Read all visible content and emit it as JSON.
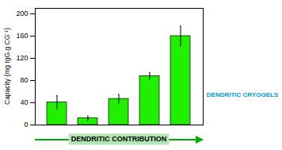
{
  "chart_data": {
    "type": "bar",
    "categories": [
      null,
      null,
      null,
      null,
      null
    ],
    "values": [
      41,
      12,
      47,
      88,
      160
    ],
    "errors": [
      12,
      4,
      8,
      6,
      18
    ],
    "color": "#22ee00",
    "ylabel": "Capacity (mg IgG.g CG⁻¹)",
    "ylim": [
      0,
      210
    ],
    "yticks": [
      0,
      40,
      80,
      120,
      160,
      200
    ],
    "tick_labels": "y",
    "grid": false,
    "annotations": [
      {
        "text": "DENDRITIC CONTRIBUTION",
        "color": "#00aa00"
      },
      {
        "text": "DENDRITIC CRYOGELS",
        "color": "#0099cc"
      }
    ]
  }
}
